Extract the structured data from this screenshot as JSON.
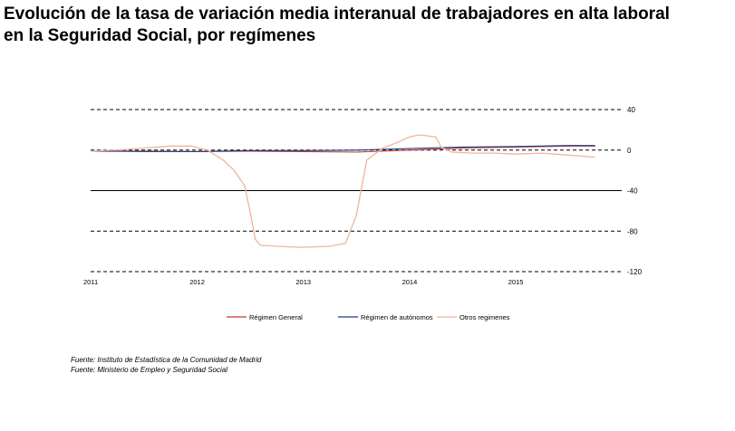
{
  "title_line1": "Evolución de la tasa de variación media interanual de trabajadores en alta laboral",
  "title_line2": "en la Seguridad Social, por  regímenes",
  "sources": [
    "Fuente: Instituto de Estadística de la Comunidad de Madrid",
    "Fuente: Ministerio de Empleo y Seguridad Social"
  ],
  "chart_data": {
    "type": "line",
    "title": "",
    "xlabel": "",
    "ylabel": "",
    "x_tick_labels": [
      "2011",
      "2012",
      "2013",
      "2014",
      "2015"
    ],
    "x_ticks": [
      2011,
      2012,
      2013,
      2014,
      2015
    ],
    "xlim": [
      2011,
      2016
    ],
    "ylim": [
      -120,
      40
    ],
    "y_ticks": [
      40,
      0,
      -40,
      -80,
      -120
    ],
    "grid": "horizontal dashed",
    "legend_position": "bottom",
    "series": [
      {
        "name": "Régimen General",
        "color": "#c0392b",
        "style": "solid",
        "x": [
          2011.0,
          2011.5,
          2012.0,
          2012.5,
          2013.0,
          2013.5,
          2014.0,
          2014.5,
          2015.0,
          2015.5,
          2015.75
        ],
        "values": [
          -1,
          -1.5,
          -1.5,
          -1,
          -1.5,
          -2,
          0,
          2,
          3,
          4,
          4
        ]
      },
      {
        "name": "Régimen de autónomos",
        "color": "#1f3c88",
        "style": "solid",
        "x": [
          2011.0,
          2011.5,
          2012.0,
          2012.5,
          2013.0,
          2013.5,
          2014.0,
          2014.5,
          2015.0,
          2015.5,
          2015.75
        ],
        "values": [
          -1,
          -1,
          -1.5,
          -0.5,
          -0.5,
          0,
          1.5,
          3,
          3.5,
          4.5,
          4.5
        ]
      },
      {
        "name": "Otros regimenes",
        "color": "#f0b49a",
        "style": "solid",
        "x": [
          2011.0,
          2011.25,
          2011.5,
          2011.75,
          2011.95,
          2012.1,
          2012.25,
          2012.35,
          2012.45,
          2012.5,
          2012.55,
          2012.6,
          2012.75,
          2013.0,
          2013.25,
          2013.4,
          2013.5,
          2013.6,
          2013.75,
          2013.9,
          2014.0,
          2014.1,
          2014.25,
          2014.3,
          2014.4,
          2014.6,
          2014.8,
          2015.0,
          2015.25,
          2015.5,
          2015.75
        ],
        "values": [
          -1,
          0,
          2,
          4,
          4,
          0,
          -10,
          -20,
          -35,
          -60,
          -88,
          -94,
          -95,
          -96,
          -95,
          -92,
          -65,
          -10,
          2,
          8,
          13,
          15,
          13,
          3,
          -2,
          -3,
          -3,
          -4,
          -3,
          -5,
          -7
        ]
      }
    ]
  }
}
